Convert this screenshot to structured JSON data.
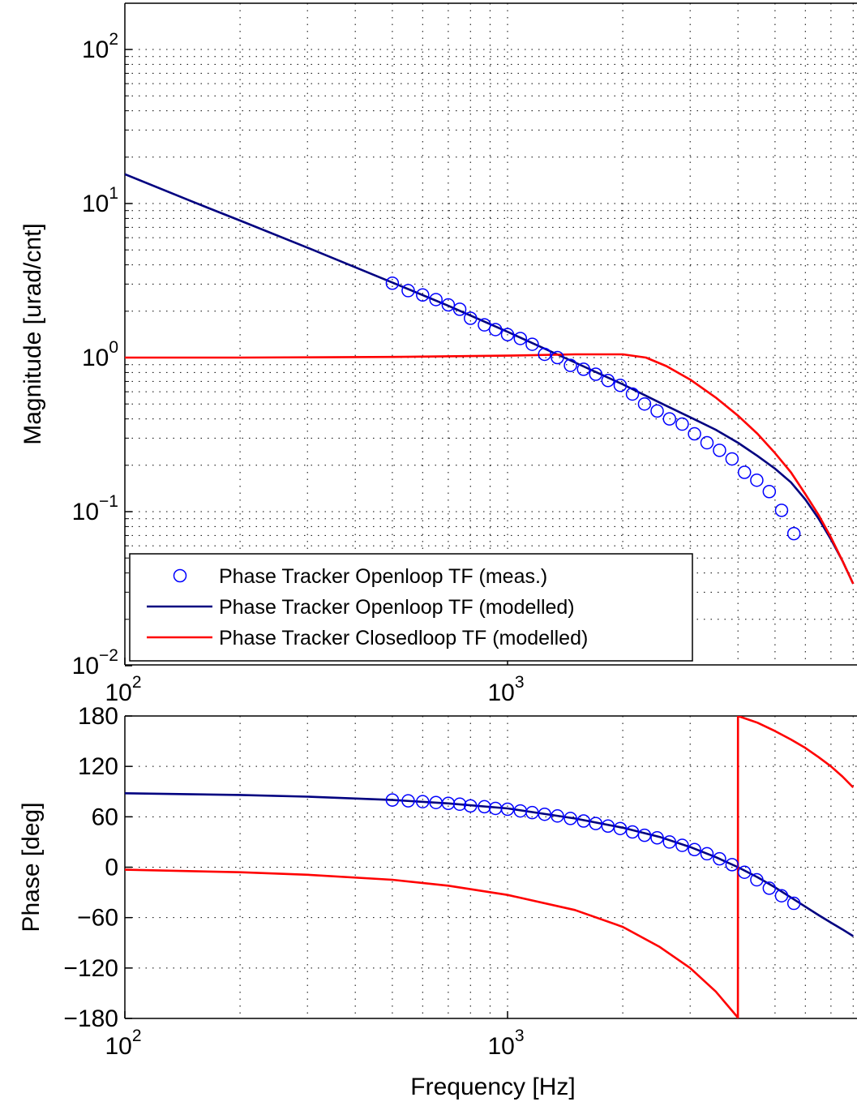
{
  "chart_data": [
    {
      "type": "line",
      "id": "magnitude",
      "ylabel": "Magnitude [urad/cnt]",
      "xlabel": "",
      "xscale": "log",
      "yscale": "log",
      "xlim": [
        100,
        8000
      ],
      "ylim": [
        0.01,
        200
      ],
      "x_ticks": [
        {
          "value": 100,
          "base": "10",
          "exp": "2"
        },
        {
          "value": 1000,
          "base": "10",
          "exp": "3"
        }
      ],
      "y_ticks": [
        {
          "value": 100,
          "base": "10",
          "exp": "2"
        },
        {
          "value": 10,
          "base": "10",
          "exp": "1"
        },
        {
          "value": 1,
          "base": "10",
          "exp": "0"
        },
        {
          "value": 0.1,
          "base": "10",
          "exp": "−1"
        },
        {
          "value": 0.01,
          "base": "10",
          "exp": "−2"
        }
      ],
      "grid": true,
      "legend_position": "bottom-left",
      "series": [
        {
          "name": "Phase Tracker Openloop TF (meas.)",
          "style": "markers",
          "color": "#0000ff",
          "x": [
            500,
            550,
            600,
            650,
            700,
            750,
            800,
            870,
            930,
            1000,
            1080,
            1160,
            1250,
            1350,
            1460,
            1580,
            1700,
            1830,
            1970,
            2120,
            2280,
            2460,
            2650,
            2860,
            3080,
            3320,
            3580,
            3860,
            4160,
            4480,
            4830,
            5200,
            5600
          ],
          "y": [
            3.04,
            2.72,
            2.55,
            2.38,
            2.2,
            2.06,
            1.8,
            1.63,
            1.52,
            1.41,
            1.33,
            1.22,
            1.05,
            1.0,
            0.89,
            0.84,
            0.78,
            0.71,
            0.66,
            0.58,
            0.5,
            0.45,
            0.4,
            0.37,
            0.32,
            0.28,
            0.25,
            0.22,
            0.18,
            0.16,
            0.135,
            0.102,
            0.072
          ]
        },
        {
          "name": "Phase Tracker Openloop TF (modelled)",
          "style": "line",
          "color": "#000080",
          "x": [
            100,
            150,
            200,
            300,
            500,
            700,
            1000,
            1500,
            2000,
            2500,
            3000,
            3500,
            4000,
            4500,
            5000,
            5500,
            6000,
            6500,
            7000,
            7500,
            8000
          ],
          "y": [
            15.5,
            10.3,
            7.75,
            5.17,
            3.07,
            2.17,
            1.47,
            0.93,
            0.67,
            0.51,
            0.41,
            0.34,
            0.28,
            0.23,
            0.19,
            0.155,
            0.12,
            0.09,
            0.066,
            0.048,
            0.034
          ]
        },
        {
          "name": "Phase Tracker Closedloop TF (modelled)",
          "style": "line",
          "color": "#ff0000",
          "x": [
            100,
            200,
            500,
            1000,
            1500,
            2000,
            2300,
            2600,
            3000,
            3500,
            4000,
            4500,
            5000,
            5500,
            6000,
            6500,
            7000,
            7500,
            8000
          ],
          "y": [
            1.0,
            1.0,
            1.01,
            1.03,
            1.05,
            1.05,
            1.0,
            0.88,
            0.72,
            0.55,
            0.42,
            0.32,
            0.24,
            0.18,
            0.13,
            0.095,
            0.068,
            0.048,
            0.034
          ]
        }
      ]
    },
    {
      "type": "line",
      "id": "phase",
      "ylabel": "Phase [deg]",
      "xlabel": "Frequency [Hz]",
      "xscale": "log",
      "yscale": "linear",
      "xlim": [
        100,
        8000
      ],
      "ylim": [
        -180,
        180
      ],
      "x_ticks": [
        {
          "value": 100,
          "base": "10",
          "exp": "2"
        },
        {
          "value": 1000,
          "base": "10",
          "exp": "3"
        }
      ],
      "y_ticks": [
        180,
        120,
        60,
        0,
        -60,
        -120,
        -180
      ],
      "y_tick_labels": [
        "180",
        "120",
        "60",
        "0",
        "−60",
        "−120",
        "−180"
      ],
      "grid": true,
      "series": [
        {
          "name": "Phase Tracker Openloop TF (meas.)",
          "style": "markers",
          "color": "#0000ff",
          "x": [
            500,
            550,
            600,
            650,
            700,
            750,
            800,
            870,
            930,
            1000,
            1080,
            1160,
            1250,
            1350,
            1460,
            1580,
            1700,
            1830,
            1970,
            2120,
            2280,
            2460,
            2650,
            2860,
            3080,
            3320,
            3580,
            3860,
            4160,
            4480,
            4830,
            5200,
            5600
          ],
          "y": [
            80,
            79,
            78,
            77,
            76,
            75,
            73,
            72,
            70,
            69,
            67,
            65,
            63,
            61,
            58,
            55,
            52,
            49,
            46,
            42,
            38,
            35,
            30,
            26,
            21,
            16,
            10,
            3,
            -6,
            -15,
            -25,
            -34,
            -43
          ]
        },
        {
          "name": "Phase Tracker Openloop TF (modelled)",
          "style": "line",
          "color": "#000080",
          "x": [
            100,
            200,
            300,
            500,
            700,
            1000,
            1500,
            2000,
            2500,
            3000,
            3500,
            4000,
            4500,
            5000,
            5500,
            6000,
            6500,
            7000,
            7500,
            8000
          ],
          "y": [
            88,
            86,
            84,
            80,
            76,
            70,
            58,
            47,
            36,
            24,
            12,
            0,
            -12,
            -24,
            -36,
            -47,
            -57,
            -66,
            -74,
            -82
          ]
        },
        {
          "name": "Phase Tracker Closedloop TF (modelled)",
          "style": "line",
          "color": "#ff0000",
          "x": [
            100,
            200,
            300,
            500,
            700,
            1000,
            1500,
            2000,
            2500,
            3000,
            3500,
            3999,
            4001,
            4500,
            5000,
            5500,
            6000,
            6500,
            7000,
            7500,
            8000
          ],
          "y": [
            -3,
            -6,
            -9,
            -15,
            -22,
            -33,
            -51,
            -71,
            -95,
            -120,
            -148,
            -179,
            180,
            172,
            162,
            152,
            142,
            131,
            120,
            108,
            95
          ]
        }
      ]
    }
  ]
}
